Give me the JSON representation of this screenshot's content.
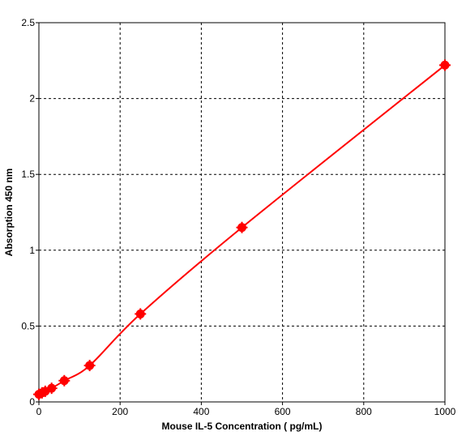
{
  "chart_data": {
    "type": "scatter",
    "title": "",
    "xlabel": "Mouse IL-5 Concentration ( pg/mL)",
    "ylabel": "Absorption 450 nm",
    "xlim": [
      0,
      1000
    ],
    "ylim": [
      0,
      2.5
    ],
    "x_ticks": [
      0,
      200,
      400,
      600,
      800,
      1000
    ],
    "x_tick_labels": [
      "0",
      "200",
      "400",
      "600",
      "800",
      "1000"
    ],
    "y_ticks": [
      0,
      0.5,
      1,
      1.5,
      2,
      2.5
    ],
    "y_tick_labels": [
      "0",
      "0.5",
      "1",
      "1.5",
      "2",
      "2.5"
    ],
    "grid": true,
    "grid_style": "dashed",
    "legend": "none",
    "series": [
      {
        "points": [
          {
            "x": 0,
            "y": 0.05
          },
          {
            "x": 7.8,
            "y": 0.06
          },
          {
            "x": 15.6,
            "y": 0.07
          },
          {
            "x": 31.25,
            "y": 0.09
          },
          {
            "x": 62.5,
            "y": 0.14
          },
          {
            "x": 125,
            "y": 0.24
          },
          {
            "x": 250,
            "y": 0.58
          },
          {
            "x": 500,
            "y": 1.15
          },
          {
            "x": 1000,
            "y": 2.22
          }
        ],
        "fit_curve": true,
        "color": "#ff0000"
      }
    ]
  },
  "colors": {
    "series": "#ff0000",
    "axis": "#000000",
    "grid": "#000000",
    "background": "#ffffff"
  }
}
